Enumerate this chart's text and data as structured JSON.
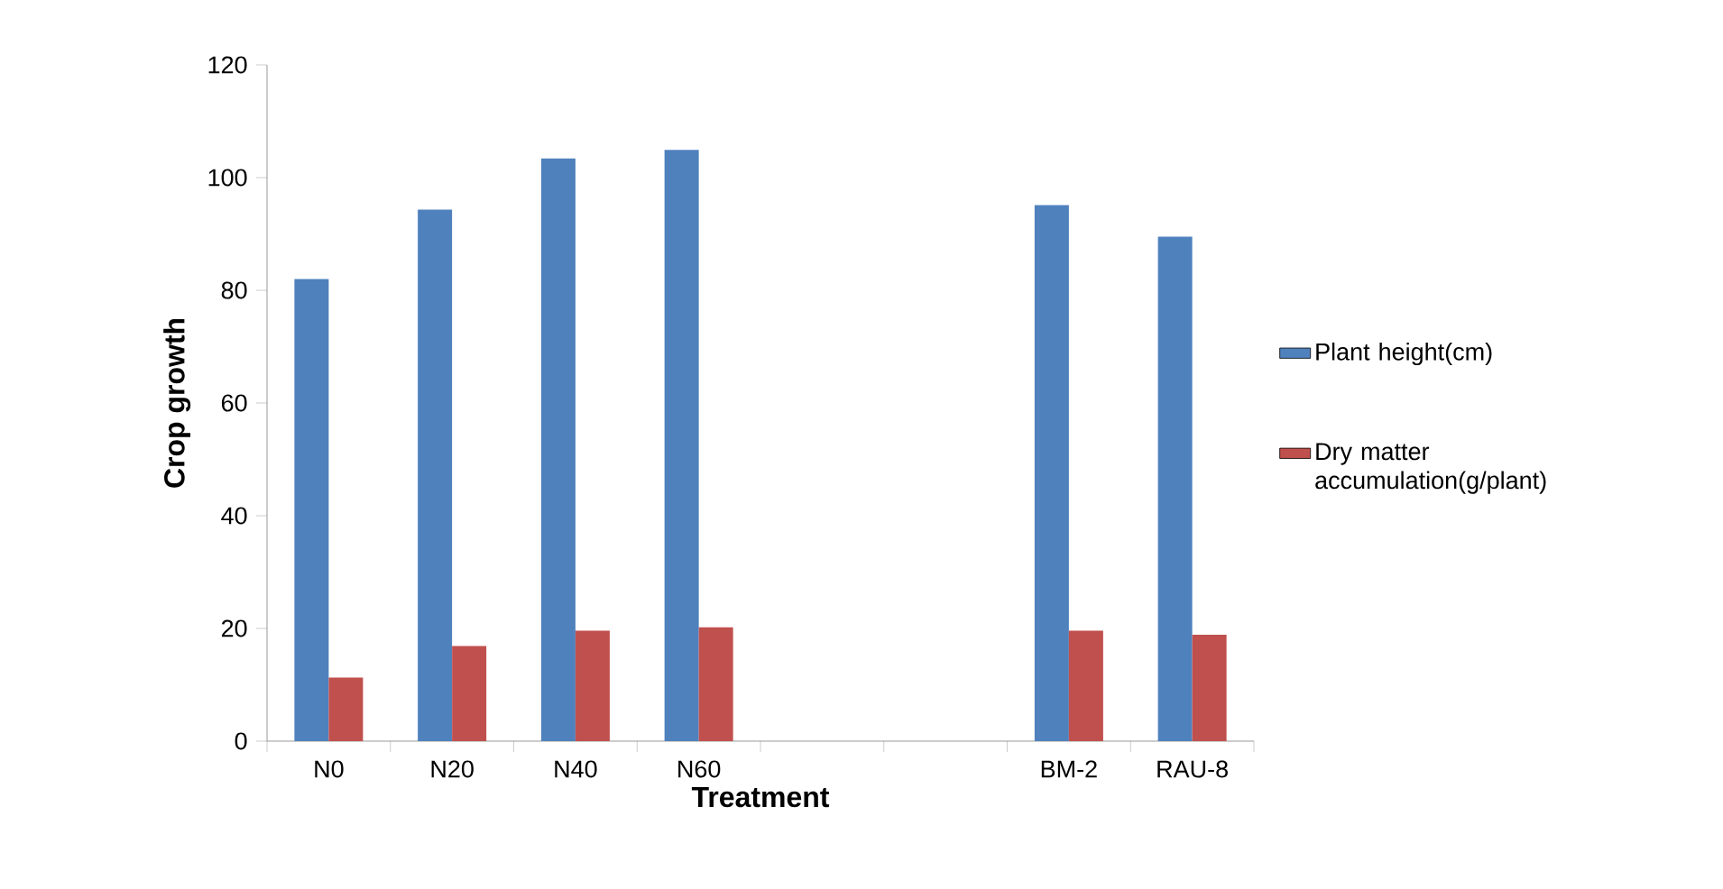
{
  "chart_data": {
    "type": "bar",
    "xlabel": "Treatment",
    "ylabel": "Crop growth",
    "categories": [
      "N0",
      "N20",
      "N40",
      "N60",
      null,
      null,
      "BM-2",
      "RAU-8"
    ],
    "series": [
      {
        "name": "Plant height(cm)",
        "color": "#4f81bd",
        "values": [
          82,
          94.3,
          103.4,
          104.9,
          null,
          null,
          95.1,
          89.5
        ]
      },
      {
        "name": "Dry matter accumulation(g/plant)",
        "color": "#c0504d",
        "values": [
          11.3,
          16.9,
          19.6,
          20.2,
          null,
          null,
          19.6,
          18.9
        ]
      }
    ],
    "ylim": [
      0,
      120
    ],
    "yticks": [
      0,
      20,
      40,
      60,
      80,
      100,
      120
    ],
    "legend": "right"
  }
}
